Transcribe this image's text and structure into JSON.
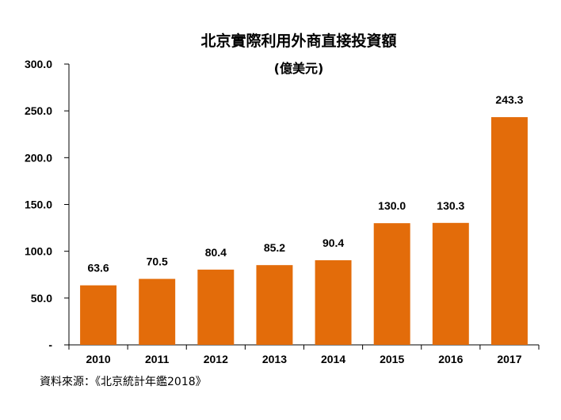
{
  "chart_data": {
    "type": "bar",
    "title": "北京實際利用外商直接投資額",
    "subtitle": "(億美元)",
    "categories": [
      "2010",
      "2011",
      "2012",
      "2013",
      "2014",
      "2015",
      "2016",
      "2017"
    ],
    "values": [
      63.6,
      70.5,
      80.4,
      85.2,
      90.4,
      130.0,
      130.3,
      243.3
    ],
    "value_labels": [
      "63.6",
      "70.5",
      "80.4",
      "85.2",
      "90.4",
      "130.0",
      "130.3",
      "243.3"
    ],
    "ylim": [
      0,
      300
    ],
    "yticks": [
      {
        "value": 0,
        "label": "-"
      },
      {
        "value": 50,
        "label": "50.0"
      },
      {
        "value": 100,
        "label": "100.0"
      },
      {
        "value": 150,
        "label": "150.0"
      },
      {
        "value": 200,
        "label": "200.0"
      },
      {
        "value": 250,
        "label": "250.0"
      },
      {
        "value": 300,
        "label": "300.0"
      }
    ],
    "grid": false,
    "bar_color": "#E36C0A"
  },
  "source": "資料來源：《北京統計年鑑2018》"
}
